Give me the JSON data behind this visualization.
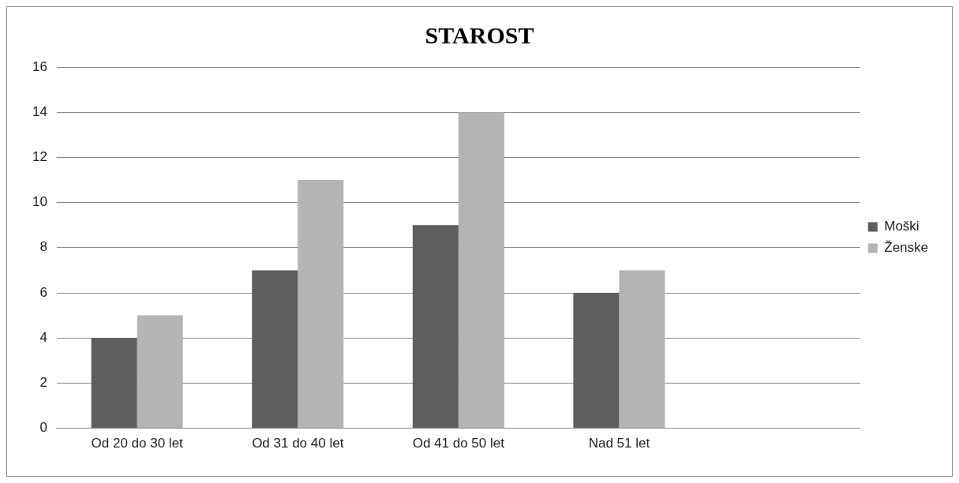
{
  "chart_data": {
    "type": "bar",
    "title": "STAROST",
    "categories": [
      "Od 20 do 30 let",
      "Od 31 do 40 let",
      "Od 41 do 50 let",
      "Nad 51 let",
      null
    ],
    "series": [
      {
        "name": "Moški",
        "color": "#5e5e5e",
        "values": [
          4,
          7,
          9,
          6,
          null
        ]
      },
      {
        "name": "Ženske",
        "color": "#b4b4b4",
        "values": [
          5,
          11,
          14,
          7,
          null
        ]
      }
    ],
    "ylim": [
      0,
      16
    ],
    "yticks": [
      0,
      2,
      4,
      6,
      8,
      10,
      12,
      14,
      16
    ],
    "grid": "y",
    "legend": "right"
  }
}
